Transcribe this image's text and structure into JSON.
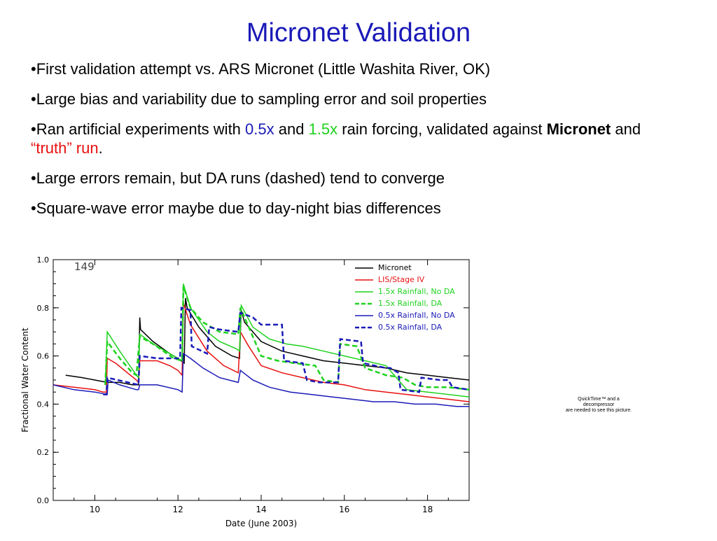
{
  "slide": {
    "title": "Micronet Validation",
    "bullets": {
      "b1": "•First validation attempt vs. ARS Micronet (Little Washita River, OK)",
      "b2": "•Large bias and variability due to sampling error and soil properties",
      "b3": {
        "pre": "•Ran artificial experiments with ",
        "x05": "0.5x",
        "and1": " and ",
        "x15": "1.5x",
        "mid": " rain forcing, validated against ",
        "micronet": "Micronet",
        "and2": " and ",
        "truth": "“truth” run",
        "end": "."
      },
      "b4": "•Large errors remain, but DA runs (dashed) tend to converge",
      "b5": "•Square-wave error maybe due to day-night bias differences"
    },
    "quicktime_note": {
      "line1": "QuickTime™ and a",
      "line2": "decompressor",
      "line3": "are needed to see this picture."
    }
  },
  "chart_data": {
    "type": "line",
    "annotation": "149",
    "xlabel": "Date (June 2003)",
    "ylabel": "Fractional Water Content",
    "xlim": [
      9.0,
      19.0
    ],
    "ylim": [
      0.0,
      1.0
    ],
    "xticks": [
      10,
      12,
      14,
      16,
      18
    ],
    "yticks": [
      "0.0",
      "0.2",
      "0.4",
      "0.6",
      "0.8",
      "1.0"
    ],
    "legend_position": "top-right",
    "series": [
      {
        "name": "Micronet",
        "color": "#000000",
        "dash": false,
        "points": [
          [
            9.3,
            0.52
          ],
          [
            9.7,
            0.51
          ],
          [
            10.0,
            0.5
          ],
          [
            10.3,
            0.49
          ],
          [
            10.6,
            0.49
          ],
          [
            10.9,
            0.48
          ],
          [
            11.05,
            0.48
          ],
          [
            11.08,
            0.76
          ],
          [
            11.1,
            0.71
          ],
          [
            11.4,
            0.66
          ],
          [
            11.8,
            0.61
          ],
          [
            12.0,
            0.59
          ],
          [
            12.15,
            0.57
          ],
          [
            12.18,
            0.84
          ],
          [
            12.22,
            0.8
          ],
          [
            12.5,
            0.72
          ],
          [
            12.9,
            0.64
          ],
          [
            13.3,
            0.6
          ],
          [
            13.48,
            0.59
          ],
          [
            13.52,
            0.79
          ],
          [
            13.6,
            0.74
          ],
          [
            14.0,
            0.66
          ],
          [
            14.5,
            0.62
          ],
          [
            15.0,
            0.6
          ],
          [
            15.5,
            0.58
          ],
          [
            16.0,
            0.57
          ],
          [
            16.5,
            0.56
          ],
          [
            17.0,
            0.55
          ],
          [
            17.5,
            0.53
          ],
          [
            18.0,
            0.52
          ],
          [
            18.5,
            0.51
          ],
          [
            19.0,
            0.5
          ]
        ]
      },
      {
        "name": "LIS/Stage IV",
        "color": "#e81010",
        "dash": false,
        "points": [
          [
            9.0,
            0.48
          ],
          [
            9.5,
            0.47
          ],
          [
            10.0,
            0.46
          ],
          [
            10.2,
            0.45
          ],
          [
            10.28,
            0.45
          ],
          [
            10.3,
            0.59
          ],
          [
            10.5,
            0.57
          ],
          [
            11.0,
            0.5
          ],
          [
            11.05,
            0.49
          ],
          [
            11.08,
            0.58
          ],
          [
            11.5,
            0.58
          ],
          [
            11.8,
            0.56
          ],
          [
            12.0,
            0.54
          ],
          [
            12.1,
            0.52
          ],
          [
            12.13,
            0.82
          ],
          [
            12.3,
            0.73
          ],
          [
            12.7,
            0.62
          ],
          [
            13.1,
            0.56
          ],
          [
            13.45,
            0.53
          ],
          [
            13.5,
            0.7
          ],
          [
            13.7,
            0.64
          ],
          [
            14.0,
            0.56
          ],
          [
            14.5,
            0.53
          ],
          [
            15.0,
            0.51
          ],
          [
            15.5,
            0.49
          ],
          [
            16.0,
            0.48
          ],
          [
            16.5,
            0.46
          ],
          [
            17.0,
            0.45
          ],
          [
            17.5,
            0.44
          ],
          [
            18.0,
            0.43
          ],
          [
            18.5,
            0.42
          ],
          [
            19.0,
            0.41
          ]
        ]
      },
      {
        "name": "1.5x Rainfall, No DA",
        "color": "#1ed21e",
        "dash": false,
        "points": [
          [
            10.25,
            0.48
          ],
          [
            10.3,
            0.7
          ],
          [
            10.6,
            0.62
          ],
          [
            11.0,
            0.52
          ],
          [
            11.05,
            0.51
          ],
          [
            11.08,
            0.69
          ],
          [
            11.4,
            0.65
          ],
          [
            11.9,
            0.6
          ],
          [
            12.1,
            0.58
          ],
          [
            12.13,
            0.9
          ],
          [
            12.3,
            0.8
          ],
          [
            12.7,
            0.7
          ],
          [
            13.0,
            0.66
          ],
          [
            13.4,
            0.63
          ],
          [
            13.48,
            0.62
          ],
          [
            13.52,
            0.81
          ],
          [
            13.8,
            0.72
          ],
          [
            14.2,
            0.67
          ],
          [
            14.6,
            0.65
          ],
          [
            15.0,
            0.64
          ],
          [
            15.5,
            0.62
          ],
          [
            16.0,
            0.6
          ],
          [
            16.5,
            0.58
          ],
          [
            17.0,
            0.56
          ],
          [
            17.5,
            0.46
          ],
          [
            18.0,
            0.45
          ],
          [
            18.5,
            0.44
          ],
          [
            19.0,
            0.43
          ]
        ]
      },
      {
        "name": "1.5x Rainfall, DA",
        "color": "#1ed21e",
        "dash": true,
        "points": [
          [
            10.25,
            0.48
          ],
          [
            10.3,
            0.66
          ],
          [
            10.6,
            0.59
          ],
          [
            10.9,
            0.53
          ],
          [
            11.0,
            0.52
          ],
          [
            11.08,
            0.68
          ],
          [
            11.4,
            0.65
          ],
          [
            11.9,
            0.59
          ],
          [
            12.1,
            0.58
          ],
          [
            12.13,
            0.89
          ],
          [
            12.3,
            0.8
          ],
          [
            12.6,
            0.74
          ],
          [
            12.8,
            0.72
          ],
          [
            13.0,
            0.7
          ],
          [
            13.45,
            0.69
          ],
          [
            13.5,
            0.8
          ],
          [
            13.7,
            0.72
          ],
          [
            14.0,
            0.6
          ],
          [
            14.4,
            0.58
          ],
          [
            14.8,
            0.57
          ],
          [
            15.3,
            0.56
          ],
          [
            15.5,
            0.5
          ],
          [
            15.85,
            0.49
          ],
          [
            15.9,
            0.65
          ],
          [
            16.3,
            0.64
          ],
          [
            16.5,
            0.55
          ],
          [
            17.0,
            0.52
          ],
          [
            17.4,
            0.51
          ],
          [
            17.7,
            0.48
          ],
          [
            18.0,
            0.47
          ],
          [
            18.5,
            0.47
          ],
          [
            19.0,
            0.46
          ]
        ]
      },
      {
        "name": "0.5x Rainfall, No DA",
        "color": "#1a1ab8",
        "dash": false,
        "points": [
          [
            9.0,
            0.48
          ],
          [
            9.5,
            0.46
          ],
          [
            10.0,
            0.45
          ],
          [
            10.3,
            0.44
          ],
          [
            10.32,
            0.5
          ],
          [
            10.6,
            0.48
          ],
          [
            11.0,
            0.46
          ],
          [
            11.05,
            0.46
          ],
          [
            11.08,
            0.48
          ],
          [
            11.5,
            0.48
          ],
          [
            12.0,
            0.46
          ],
          [
            12.1,
            0.45
          ],
          [
            12.13,
            0.61
          ],
          [
            12.3,
            0.59
          ],
          [
            12.6,
            0.55
          ],
          [
            13.0,
            0.51
          ],
          [
            13.45,
            0.49
          ],
          [
            13.5,
            0.54
          ],
          [
            13.8,
            0.5
          ],
          [
            14.2,
            0.47
          ],
          [
            14.7,
            0.45
          ],
          [
            15.2,
            0.44
          ],
          [
            15.7,
            0.43
          ],
          [
            16.2,
            0.42
          ],
          [
            16.7,
            0.41
          ],
          [
            17.2,
            0.41
          ],
          [
            17.7,
            0.4
          ],
          [
            18.2,
            0.4
          ],
          [
            18.7,
            0.39
          ],
          [
            19.0,
            0.39
          ]
        ]
      },
      {
        "name": "0.5x Rainfall, DA",
        "color": "#1a1ab8",
        "dash": true,
        "points": [
          [
            10.2,
            0.44
          ],
          [
            10.28,
            0.44
          ],
          [
            10.3,
            0.51
          ],
          [
            10.8,
            0.49
          ],
          [
            11.05,
            0.48
          ],
          [
            11.08,
            0.6
          ],
          [
            11.5,
            0.59
          ],
          [
            11.9,
            0.59
          ],
          [
            12.05,
            0.59
          ],
          [
            12.08,
            0.8
          ],
          [
            12.3,
            0.79
          ],
          [
            12.33,
            0.64
          ],
          [
            12.7,
            0.61
          ],
          [
            12.75,
            0.72
          ],
          [
            13.0,
            0.71
          ],
          [
            13.45,
            0.7
          ],
          [
            13.5,
            0.78
          ],
          [
            13.8,
            0.76
          ],
          [
            14.0,
            0.73
          ],
          [
            14.5,
            0.73
          ],
          [
            14.55,
            0.58
          ],
          [
            15.0,
            0.57
          ],
          [
            15.1,
            0.5
          ],
          [
            15.4,
            0.49
          ],
          [
            15.7,
            0.49
          ],
          [
            15.85,
            0.49
          ],
          [
            15.9,
            0.67
          ],
          [
            16.4,
            0.66
          ],
          [
            16.45,
            0.57
          ],
          [
            17.0,
            0.55
          ],
          [
            17.1,
            0.55
          ],
          [
            17.3,
            0.53
          ],
          [
            17.35,
            0.46
          ],
          [
            17.8,
            0.45
          ],
          [
            17.85,
            0.51
          ],
          [
            18.3,
            0.5
          ],
          [
            18.5,
            0.5
          ],
          [
            18.6,
            0.47
          ],
          [
            19.0,
            0.46
          ]
        ]
      }
    ]
  }
}
